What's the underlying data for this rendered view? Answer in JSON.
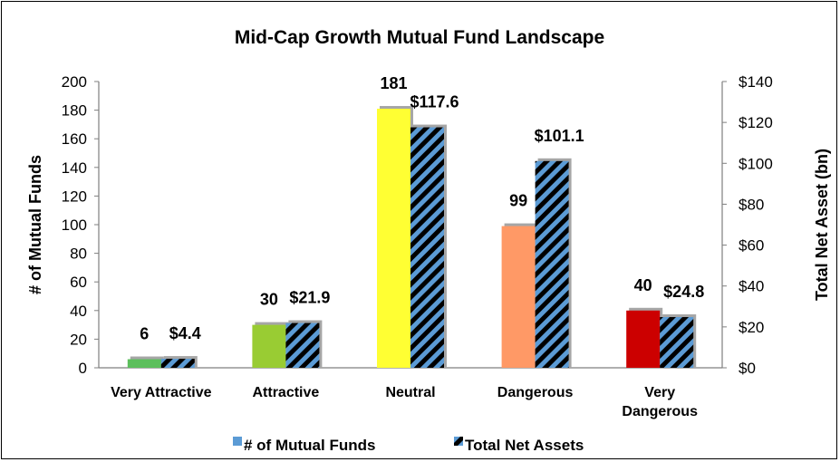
{
  "chart_data": {
    "type": "bar",
    "title": "Mid-Cap Growth Mutual Fund Landscape",
    "categories": [
      "Very Attractive",
      "Attractive",
      "Neutral",
      "Dangerous",
      "Very Dangerous"
    ],
    "category_lines": [
      [
        "Very Attractive"
      ],
      [
        "Attractive"
      ],
      [
        "Neutral"
      ],
      [
        "Dangerous"
      ],
      [
        "Very",
        "Dangerous"
      ]
    ],
    "category_colors": [
      "#5cbf5c",
      "#99cc33",
      "#ffff33",
      "#ff9966",
      "#cc0000"
    ],
    "series": [
      {
        "name": "# of Mutual Funds",
        "axis": "left",
        "values": [
          6,
          30,
          181,
          99,
          40
        ],
        "labels": [
          "6",
          "30",
          "181",
          "99",
          "40"
        ],
        "legend_color": "#5b9bd5"
      },
      {
        "name": "Total Net Assets",
        "axis": "right",
        "values": [
          4.4,
          21.9,
          117.6,
          101.1,
          24.8
        ],
        "labels": [
          "$4.4",
          "$21.9",
          "$117.6",
          "$101.1",
          "$24.8"
        ],
        "pattern": "diagonal-stripes",
        "colors": [
          "#5b9bd5",
          "#000000"
        ]
      }
    ],
    "ylabel": "# of Mutual Funds",
    "ylabel_right": "Total Net Asset (bn)",
    "ylim": [
      0,
      200
    ],
    "ylim_right": [
      0,
      140
    ],
    "yticks": [
      "0",
      "20",
      "40",
      "60",
      "80",
      "100",
      "120",
      "140",
      "160",
      "180",
      "200"
    ],
    "yticks_right": [
      "$0",
      "$20",
      "$40",
      "$60",
      "$80",
      "$100",
      "$120",
      "$140"
    ],
    "grid": false,
    "legend_position": "bottom"
  }
}
